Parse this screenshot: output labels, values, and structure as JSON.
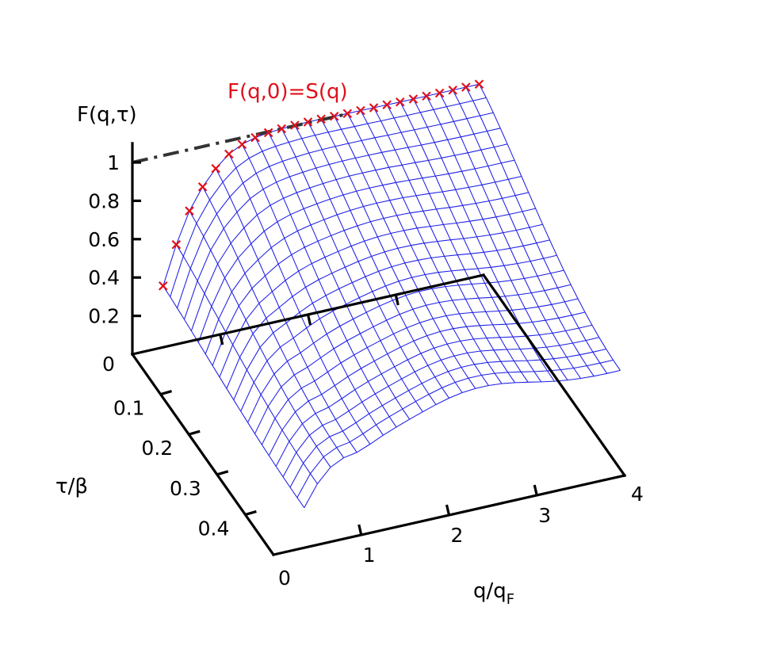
{
  "chart_data": {
    "type": "surface",
    "zlabel": "F(q,τ)",
    "xlabel": "q/q",
    "xlabel_sub": "F",
    "ylabel": "τ/β",
    "annotation": "F(q,0)=S(q)",
    "x_ticks": [
      "0",
      "1",
      "2",
      "3",
      "4"
    ],
    "y_ticks": [
      "0",
      "0.1",
      "0.2",
      "0.3",
      "0.4"
    ],
    "z_ticks": [
      "0.2",
      "0.4",
      "0.6",
      "0.8",
      "1"
    ],
    "xlim": [
      0,
      4
    ],
    "ylim": [
      0,
      0.5
    ],
    "zlim": [
      0,
      1.1
    ],
    "reference_line": {
      "label": "",
      "z": 1.0,
      "style": "dash-dot"
    },
    "surface": {
      "q": [
        0.35,
        0.5,
        0.65,
        0.8,
        0.95,
        1.1,
        1.25,
        1.4,
        1.55,
        1.7,
        1.85,
        2.0,
        2.15,
        2.3,
        2.45,
        2.6,
        2.75,
        2.9,
        3.05,
        3.2,
        3.35,
        3.5,
        3.65,
        3.8,
        3.95
      ],
      "tau": [
        0,
        0.025,
        0.05,
        0.075,
        0.1,
        0.125,
        0.15,
        0.175,
        0.2,
        0.225,
        0.25,
        0.275,
        0.3,
        0.325,
        0.35,
        0.375,
        0.4,
        0.425,
        0.45,
        0.475,
        0.5
      ],
      "description_S_of_q": "S(q) rises from about 0.3 at small q and saturates near 1.0 for q > 2"
    },
    "markers": {
      "series": "F(q,0)=S(q)",
      "q": [
        0.35,
        0.5,
        0.65,
        0.8,
        0.95,
        1.1,
        1.25,
        1.4,
        1.55,
        1.7,
        1.85,
        2.0,
        2.15,
        2.3,
        2.45,
        2.6,
        2.75,
        2.9,
        3.05,
        3.2,
        3.35,
        3.5,
        3.65,
        3.8,
        3.95
      ],
      "S": [
        0.32,
        0.52,
        0.68,
        0.79,
        0.87,
        0.93,
        0.965,
        0.985,
        0.995,
        1.0,
        1.003,
        1.004,
        1.004,
        1.003,
        1.002,
        1.002,
        1.001,
        1.001,
        1.0,
        1.0,
        1.0,
        1.0,
        1.0,
        1.0,
        1.0
      ]
    },
    "colors": {
      "surface": "#1e1ee6",
      "markers": "#e0111b",
      "axes": "#000000",
      "reference": "#333333"
    }
  }
}
